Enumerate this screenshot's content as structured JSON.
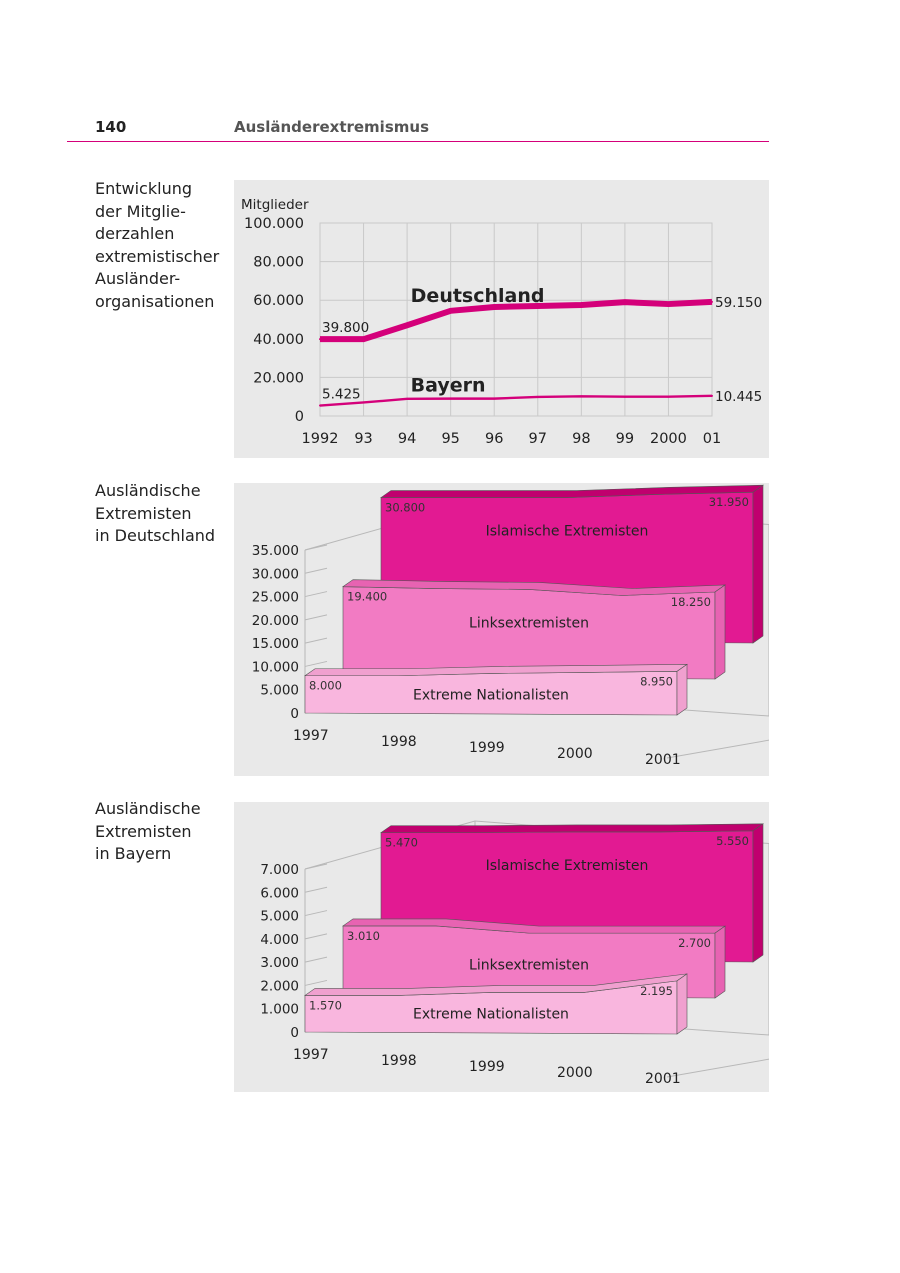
{
  "header": {
    "page_number": "140",
    "title": "Ausländerextremismus"
  },
  "captions": [
    [
      "Entwicklung",
      "der Mitglie-",
      "derzahlen",
      "extremistischer",
      "Ausländer-",
      "organisationen"
    ],
    [
      "Ausländische",
      "Extremisten",
      "in Deutschland"
    ],
    [
      "Ausländische",
      "Extremisten",
      "in Bayern"
    ]
  ],
  "colors": {
    "accent": "#d4007a",
    "dark": "#e21a92",
    "dark_top": "#c0006e",
    "mid": "#f27bc3",
    "light": "#f9b6de",
    "panel_bg": "#e9e9e9"
  },
  "chart_data": [
    {
      "type": "line",
      "ylabel": "Mitglieder",
      "ylim": [
        0,
        100000
      ],
      "y_ticks": [
        "100.000",
        "80.000",
        "60.000",
        "40.000",
        "20.000",
        "0"
      ],
      "x": [
        1992,
        1993,
        1994,
        1995,
        1996,
        1997,
        1998,
        1999,
        2000,
        2001
      ],
      "x_tick_labels": [
        "1992",
        "93",
        "94",
        "95",
        "96",
        "97",
        "98",
        "99",
        "2000",
        "01"
      ],
      "grid": true,
      "series": [
        {
          "name": "Deutschland",
          "values": [
            39800,
            39800,
            47000,
            54500,
            56500,
            57000,
            57500,
            59000,
            58000,
            59150
          ],
          "start_label": "39.800",
          "end_label": "59.150"
        },
        {
          "name": "Bayern",
          "values": [
            5425,
            7000,
            8900,
            9000,
            9000,
            9900,
            10200,
            10000,
            10000,
            10445
          ],
          "start_label": "5.425",
          "end_label": "10.445"
        }
      ]
    },
    {
      "type": "area",
      "title_context": "Ausländische Extremisten in Deutschland",
      "ylim": [
        0,
        35000
      ],
      "y_ticks": [
        "35.000",
        "30.000",
        "25.000",
        "20.000",
        "15.000",
        "10.000",
        "5.000",
        "0"
      ],
      "categories": [
        "1997",
        "1998",
        "1999",
        "2000",
        "2001"
      ],
      "grid": true,
      "series": [
        {
          "name": "Islamische Extremisten",
          "values": [
            30800,
            30800,
            30800,
            31500,
            31950
          ],
          "start_label": "30.800",
          "end_label": "31.950"
        },
        {
          "name": "Linksextremisten",
          "values": [
            19400,
            19000,
            18800,
            17500,
            18250
          ],
          "start_label": "19.400",
          "end_label": "18.250"
        },
        {
          "name": "Extreme Nationalisten",
          "values": [
            8000,
            8000,
            8500,
            8700,
            8950
          ],
          "start_label": "8.000",
          "end_label": "8.950"
        }
      ]
    },
    {
      "type": "area",
      "title_context": "Ausländische Extremisten in Bayern",
      "ylim": [
        0,
        7000
      ],
      "y_ticks": [
        "7.000",
        "6.000",
        "5.000",
        "4.000",
        "3.000",
        "2.000",
        "1.000",
        "0"
      ],
      "categories": [
        "1997",
        "1998",
        "1999",
        "2000",
        "2001"
      ],
      "grid": true,
      "series": [
        {
          "name": "Islamische Extremisten",
          "values": [
            5470,
            5470,
            5500,
            5500,
            5550
          ],
          "start_label": "5.470",
          "end_label": "5.550"
        },
        {
          "name": "Linksextremisten",
          "values": [
            3010,
            3010,
            2700,
            2700,
            2700
          ],
          "start_label": "3.010",
          "end_label": "2.700"
        },
        {
          "name": "Extreme Nationalisten",
          "values": [
            1570,
            1570,
            1700,
            1700,
            2195
          ],
          "start_label": "1.570",
          "end_label": "2.195"
        }
      ]
    }
  ]
}
